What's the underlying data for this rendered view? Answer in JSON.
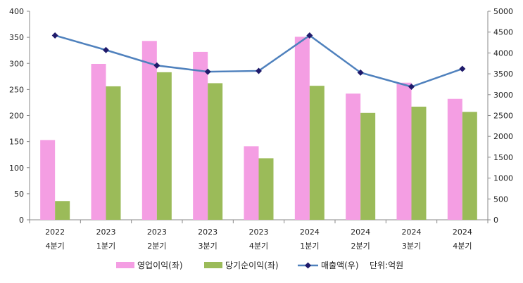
{
  "chart_data": {
    "type": "bar",
    "categories": [
      [
        "2022",
        "4분기"
      ],
      [
        "2023",
        "1분기"
      ],
      [
        "2023",
        "2분기"
      ],
      [
        "2023",
        "3분기"
      ],
      [
        "2023",
        "4분기"
      ],
      [
        "2024",
        "1분기"
      ],
      [
        "2024",
        "2분기"
      ],
      [
        "2024",
        "3분기"
      ],
      [
        "2024",
        "4분기"
      ]
    ],
    "series": [
      {
        "name": "영업이익(좌)",
        "type": "bar",
        "axis": "left",
        "color": "#f49ee3",
        "values": [
          153,
          299,
          343,
          322,
          141,
          351,
          242,
          263,
          232
        ]
      },
      {
        "name": "당기순이익(좌)",
        "type": "bar",
        "axis": "left",
        "color": "#9bbb59",
        "values": [
          36,
          256,
          283,
          262,
          118,
          257,
          205,
          217,
          207
        ]
      },
      {
        "name": "매출액(우)",
        "type": "line",
        "axis": "right",
        "color": "#4f81bd",
        "marker_color": "#1f1a6b",
        "values": [
          4420,
          4070,
          3700,
          3550,
          3570,
          4420,
          3530,
          3190,
          3620
        ]
      }
    ],
    "left_axis": {
      "min": 0,
      "max": 400,
      "ticks": [
        0,
        50,
        100,
        150,
        200,
        250,
        300,
        350,
        400
      ]
    },
    "right_axis": {
      "min": 0,
      "max": 5000,
      "ticks": [
        0,
        500,
        1000,
        1500,
        2000,
        2500,
        3000,
        3500,
        4000,
        4500,
        5000
      ]
    },
    "unit_note": "단위:억원",
    "legend_position": "bottom",
    "grid": false
  }
}
